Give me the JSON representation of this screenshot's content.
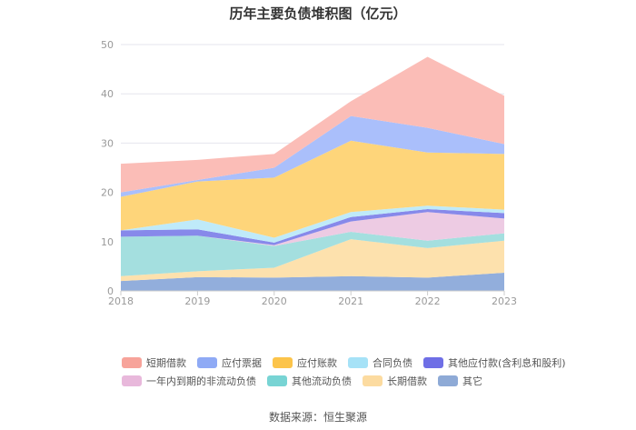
{
  "chart_data": {
    "type": "area",
    "stacked": true,
    "title": "历年主要负债堆积图（亿元）",
    "x": [
      "2018",
      "2019",
      "2020",
      "2021",
      "2022",
      "2023"
    ],
    "ylim": [
      0,
      50
    ],
    "yticks": [
      0,
      10,
      20,
      30,
      40,
      50
    ],
    "grid": true,
    "legend_position": "bottom",
    "series": [
      {
        "name": "其它",
        "color": "#92aedc",
        "values": [
          2.0,
          2.8,
          2.7,
          3.0,
          2.7,
          3.7
        ]
      },
      {
        "name": "长期借款",
        "color": "#fde1ad",
        "values": [
          1.0,
          1.2,
          2.0,
          7.5,
          6.0,
          6.5
        ]
      },
      {
        "name": "其他流动负债",
        "color": "#a4dfdf",
        "values": [
          8.0,
          7.2,
          4.4,
          1.5,
          1.5,
          1.5
        ]
      },
      {
        "name": "一年内到期的非流动负债",
        "color": "#edcbe3",
        "values": [
          0.0,
          0.0,
          0.2,
          2.1,
          5.8,
          3.0
        ]
      },
      {
        "name": "其他应付款(含利息和股利)",
        "color": "#8789ea",
        "values": [
          1.3,
          1.3,
          0.5,
          0.9,
          0.6,
          1.1
        ]
      },
      {
        "name": "合同负债",
        "color": "#bfeaf9",
        "values": [
          0.0,
          2.0,
          1.0,
          1.0,
          0.7,
          0.7
        ]
      },
      {
        "name": "应付账款",
        "color": "#fed57a",
        "values": [
          6.8,
          7.7,
          12.2,
          14.5,
          10.8,
          11.3
        ]
      },
      {
        "name": "应付票据",
        "color": "#aabffb",
        "values": [
          0.9,
          0.3,
          2.0,
          5.0,
          5.0,
          2.0
        ]
      },
      {
        "name": "短期借款",
        "color": "#fbbdb7",
        "values": [
          5.8,
          4.1,
          2.8,
          3.0,
          14.4,
          9.8
        ]
      }
    ],
    "legend": [
      {
        "name": "短期借款",
        "color": "#f7a39a"
      },
      {
        "name": "应付票据",
        "color": "#8faaf5"
      },
      {
        "name": "应付账款",
        "color": "#fcc44a"
      },
      {
        "name": "合同负债",
        "color": "#a6e2f7"
      },
      {
        "name": "其他应付款(含利息和股利)",
        "color": "#6f6fe6"
      },
      {
        "name": "一年内到期的非流动负债",
        "color": "#e8b8db"
      },
      {
        "name": "其他流动负债",
        "color": "#78d4d4"
      },
      {
        "name": "长期借款",
        "color": "#fcdba0"
      },
      {
        "name": "其它",
        "color": "#8eaad6"
      }
    ]
  },
  "source": "数据来源：恒生聚源"
}
